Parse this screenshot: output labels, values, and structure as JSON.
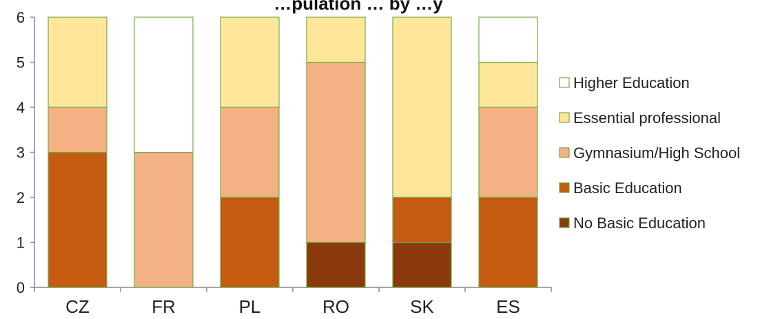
{
  "chart_data": {
    "type": "bar",
    "stacked": true,
    "title": "…pulation … by …y",
    "xlabel": "",
    "ylabel": "",
    "ylim": [
      0,
      6
    ],
    "yticks": [
      0,
      1,
      2,
      3,
      4,
      5,
      6
    ],
    "grid": false,
    "legend_position": "right",
    "categories": [
      "CZ",
      "FR",
      "PL",
      "RO",
      "SK",
      "ES"
    ],
    "series": [
      {
        "name": "No Basic Education",
        "color": "#8B3A0E",
        "values": [
          0,
          0,
          0,
          1,
          1,
          0
        ]
      },
      {
        "name": "Basic Education",
        "color": "#C55A11",
        "values": [
          3,
          0,
          2,
          0,
          1,
          2
        ]
      },
      {
        "name": "Gymnasium/High School",
        "color": "#F4B183",
        "values": [
          1,
          3,
          2,
          4,
          0,
          2
        ]
      },
      {
        "name": "Essential professional",
        "color": "#FFE699",
        "values": [
          2,
          0,
          2,
          1,
          4,
          1
        ]
      },
      {
        "name": "Higher Education",
        "color": "#FFFFFF",
        "values": [
          0,
          3,
          0,
          0,
          0,
          1
        ]
      }
    ],
    "legend_order": [
      "Higher Education",
      "Essential professional",
      "Gymnasium/High School",
      "Basic Education",
      "No Basic Education"
    ],
    "colors": {
      "bar_outline": "#70AD47",
      "axis": "#888888"
    }
  }
}
